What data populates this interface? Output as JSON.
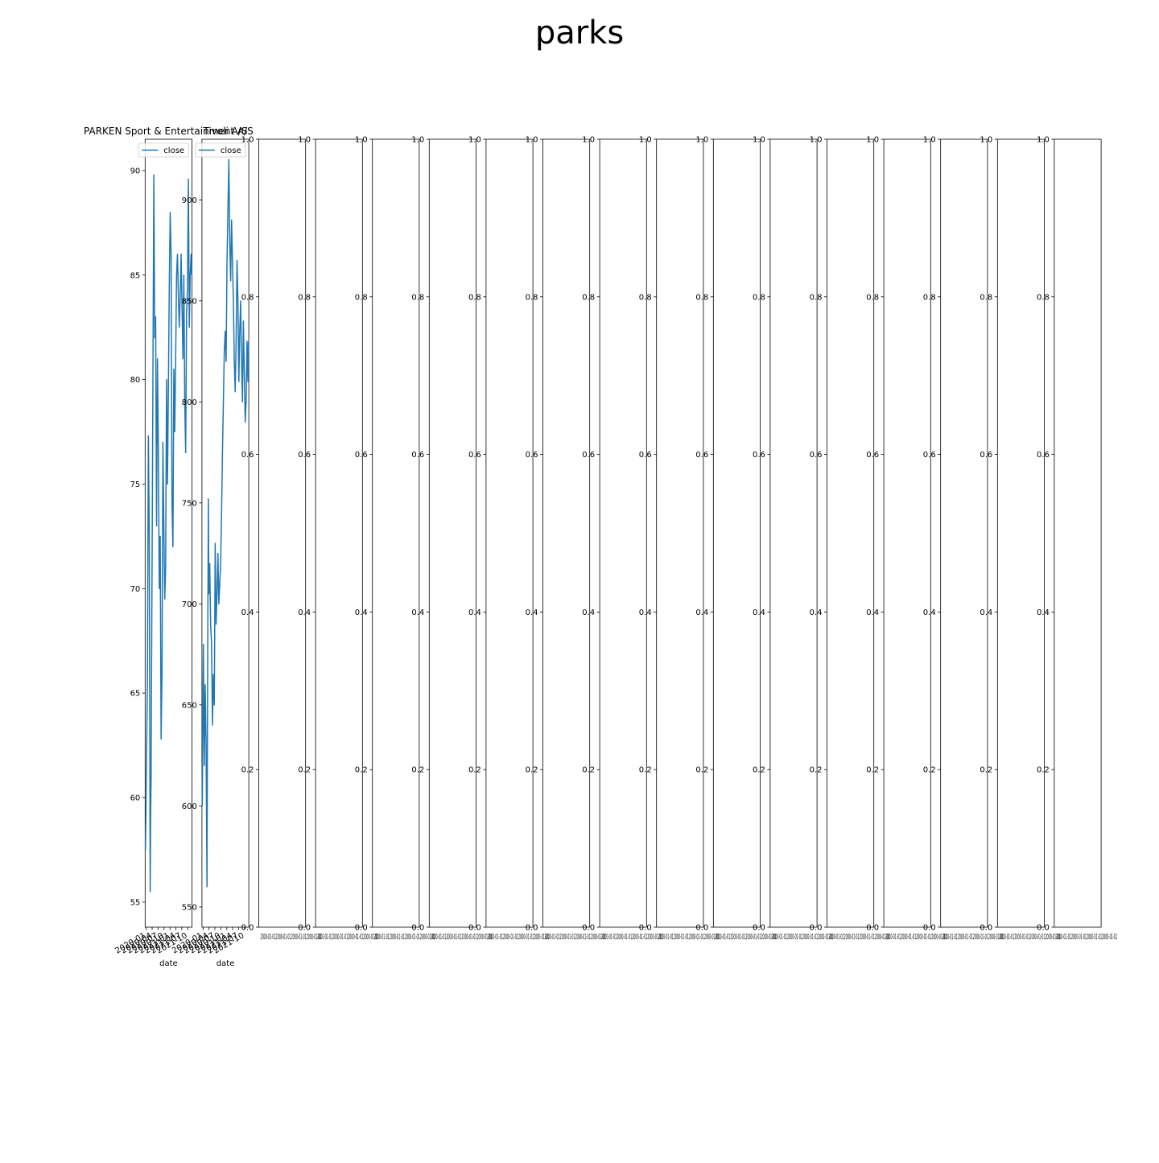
{
  "figure": {
    "suptitle": "parks"
  },
  "colors": {
    "line": "#1f77b4",
    "axes": "#000000",
    "background": "#ffffff",
    "legend_border": "#cccccc"
  },
  "chart_data": [
    {
      "type": "line",
      "title": "PARKEN Sport & Entertainment A/S",
      "xlabel": "date",
      "ylabel": "",
      "legend": {
        "entries": [
          "close"
        ],
        "placement": "upper-left"
      },
      "grid": false,
      "ylim": [
        53.8,
        91.5
      ],
      "xlim": [
        "2019-12-15",
        "2021-12-05"
      ],
      "yticks": [
        55,
        60,
        65,
        70,
        75,
        80,
        85,
        90
      ],
      "xticks": [
        "2020-01",
        "2020-04",
        "2020-07",
        "2020-10",
        "2021-01",
        "2021-04",
        "2021-07",
        "2021-10"
      ],
      "series": [
        {
          "name": "close",
          "x": [
            "2019-12-20",
            "2020-01-06",
            "2020-01-20",
            "2020-02-03",
            "2020-02-17",
            "2020-03-02",
            "2020-03-09",
            "2020-03-16",
            "2020-03-23",
            "2020-03-30",
            "2020-04-13",
            "2020-04-27",
            "2020-05-11",
            "2020-05-25",
            "2020-06-08",
            "2020-06-22",
            "2020-07-06",
            "2020-07-20",
            "2020-08-03",
            "2020-08-17",
            "2020-08-31",
            "2020-09-14",
            "2020-09-28",
            "2020-10-12",
            "2020-10-26",
            "2020-11-09",
            "2020-11-23",
            "2020-12-07",
            "2020-12-21",
            "2021-01-04",
            "2021-01-18",
            "2021-02-01",
            "2021-02-15",
            "2021-03-01",
            "2021-03-15",
            "2021-03-29",
            "2021-04-12",
            "2021-04-26",
            "2021-05-10",
            "2021-05-24",
            "2021-06-07",
            "2021-06-21",
            "2021-07-05",
            "2021-07-19",
            "2021-08-02",
            "2021-08-16",
            "2021-08-30",
            "2021-09-13",
            "2021-09-27",
            "2021-10-11",
            "2021-10-25",
            "2021-11-08",
            "2021-11-22",
            "2021-11-30"
          ],
          "values": [
            57.5,
            62,
            66,
            77.3,
            72.5,
            55.5,
            59,
            61,
            66,
            70.5,
            80,
            89.8,
            82,
            83,
            73,
            81,
            76.5,
            70,
            72.5,
            62.8,
            66,
            77,
            73,
            69.5,
            71,
            80,
            75,
            79.5,
            84.5,
            88,
            86,
            74,
            72,
            80.5,
            77.5,
            81,
            85,
            86,
            84,
            82.5,
            84,
            86,
            83.5,
            81,
            85,
            79,
            76.5,
            83,
            84.5,
            89.6,
            82.5,
            85,
            86,
            85
          ]
        }
      ]
    },
    {
      "type": "line",
      "title": "Tivoli A/S",
      "xlabel": "date",
      "ylabel": "",
      "legend": {
        "entries": [
          "close"
        ],
        "placement": "upper-left"
      },
      "grid": false,
      "ylim": [
        540,
        930
      ],
      "xlim": [
        "2019-12-15",
        "2021-12-05"
      ],
      "yticks": [
        550,
        600,
        650,
        700,
        750,
        800,
        850,
        900
      ],
      "xticks": [
        "2020-01",
        "2020-04",
        "2020-07",
        "2020-10",
        "2021-01",
        "2021-04",
        "2021-07",
        "2021-10"
      ],
      "series": [
        {
          "name": "close",
          "x": [
            "2019-12-20",
            "2020-01-06",
            "2020-01-20",
            "2020-02-03",
            "2020-02-17",
            "2020-03-02",
            "2020-03-09",
            "2020-03-16",
            "2020-03-23",
            "2020-03-30",
            "2020-04-13",
            "2020-04-27",
            "2020-05-11",
            "2020-05-25",
            "2020-06-08",
            "2020-06-22",
            "2020-07-06",
            "2020-07-20",
            "2020-08-03",
            "2020-08-17",
            "2020-08-31",
            "2020-09-14",
            "2020-09-28",
            "2020-10-12",
            "2020-10-26",
            "2020-11-09",
            "2020-11-23",
            "2020-12-07",
            "2020-12-21",
            "2021-01-04",
            "2021-01-18",
            "2021-02-01",
            "2021-02-15",
            "2021-03-01",
            "2021-03-15",
            "2021-03-29",
            "2021-04-12",
            "2021-04-26",
            "2021-05-10",
            "2021-05-24",
            "2021-06-07",
            "2021-06-21",
            "2021-07-05",
            "2021-07-19",
            "2021-08-02",
            "2021-08-16",
            "2021-08-30",
            "2021-09-13",
            "2021-09-27",
            "2021-10-11",
            "2021-10-25",
            "2021-11-08",
            "2021-11-22",
            "2021-11-30"
          ],
          "values": [
            600,
            680,
            620,
            660,
            630,
            560,
            640,
            700,
            752,
            705,
            720,
            690,
            680,
            640,
            665,
            650,
            730,
            690,
            705,
            725,
            700,
            710,
            720,
            745,
            775,
            800,
            825,
            835,
            820,
            870,
            895,
            920,
            880,
            860,
            890,
            870,
            850,
            820,
            805,
            830,
            870,
            850,
            810,
            835,
            850,
            820,
            800,
            840,
            815,
            790,
            800,
            830,
            810,
            830
          ]
        }
      ]
    },
    {
      "type": "line",
      "title": "",
      "xlabel": "",
      "ylabel": "",
      "ylim": [
        0,
        1
      ],
      "yticks": [
        "0.0",
        "0.2",
        "0.4",
        "0.6",
        "0.8",
        "1.0"
      ],
      "xticks_label": "2000-01-01",
      "series": []
    },
    {
      "type": "line",
      "title": "",
      "xlabel": "",
      "ylabel": "",
      "ylim": [
        0,
        1
      ],
      "yticks": [
        "0.0",
        "0.2",
        "0.4",
        "0.6",
        "0.8",
        "1.0"
      ],
      "xticks_label": "2000-01-01",
      "series": []
    },
    {
      "type": "line",
      "title": "",
      "xlabel": "",
      "ylabel": "",
      "ylim": [
        0,
        1
      ],
      "yticks": [
        "0.0",
        "0.2",
        "0.4",
        "0.6",
        "0.8",
        "1.0"
      ],
      "xticks_label": "2000-01-01",
      "series": []
    },
    {
      "type": "line",
      "title": "",
      "xlabel": "",
      "ylabel": "",
      "ylim": [
        0,
        1
      ],
      "yticks": [
        "0.0",
        "0.2",
        "0.4",
        "0.6",
        "0.8",
        "1.0"
      ],
      "xticks_label": "2000-01-01",
      "series": []
    },
    {
      "type": "line",
      "title": "",
      "xlabel": "",
      "ylabel": "",
      "ylim": [
        0,
        1
      ],
      "yticks": [
        "0.0",
        "0.2",
        "0.4",
        "0.6",
        "0.8",
        "1.0"
      ],
      "xticks_label": "2000-01-01",
      "series": []
    },
    {
      "type": "line",
      "title": "",
      "xlabel": "",
      "ylabel": "",
      "ylim": [
        0,
        1
      ],
      "yticks": [
        "0.0",
        "0.2",
        "0.4",
        "0.6",
        "0.8",
        "1.0"
      ],
      "xticks_label": "2000-01-01",
      "series": []
    },
    {
      "type": "line",
      "title": "",
      "xlabel": "",
      "ylabel": "",
      "ylim": [
        0,
        1
      ],
      "yticks": [
        "0.0",
        "0.2",
        "0.4",
        "0.6",
        "0.8",
        "1.0"
      ],
      "xticks_label": "2000-01-01",
      "series": []
    },
    {
      "type": "line",
      "title": "",
      "xlabel": "",
      "ylabel": "",
      "ylim": [
        0,
        1
      ],
      "yticks": [
        "0.0",
        "0.2",
        "0.4",
        "0.6",
        "0.8",
        "1.0"
      ],
      "xticks_label": "2000-01-01",
      "series": []
    },
    {
      "type": "line",
      "title": "",
      "xlabel": "",
      "ylabel": "",
      "ylim": [
        0,
        1
      ],
      "yticks": [
        "0.0",
        "0.2",
        "0.4",
        "0.6",
        "0.8",
        "1.0"
      ],
      "xticks_label": "2000-01-01",
      "series": []
    },
    {
      "type": "line",
      "title": "",
      "xlabel": "",
      "ylabel": "",
      "ylim": [
        0,
        1
      ],
      "yticks": [
        "0.0",
        "0.2",
        "0.4",
        "0.6",
        "0.8",
        "1.0"
      ],
      "xticks_label": "2000-01-01",
      "series": []
    },
    {
      "type": "line",
      "title": "",
      "xlabel": "",
      "ylabel": "",
      "ylim": [
        0,
        1
      ],
      "yticks": [
        "0.0",
        "0.2",
        "0.4",
        "0.6",
        "0.8",
        "1.0"
      ],
      "xticks_label": "2000-01-01",
      "series": []
    },
    {
      "type": "line",
      "title": "",
      "xlabel": "",
      "ylabel": "",
      "ylim": [
        0,
        1
      ],
      "yticks": [
        "0.0",
        "0.2",
        "0.4",
        "0.6",
        "0.8",
        "1.0"
      ],
      "xticks_label": "2000-01-01",
      "series": []
    },
    {
      "type": "line",
      "title": "",
      "xlabel": "",
      "ylabel": "",
      "ylim": [
        0,
        1
      ],
      "yticks": [
        "0.0",
        "0.2",
        "0.4",
        "0.6",
        "0.8",
        "1.0"
      ],
      "xticks_label": "2000-01-01",
      "series": []
    },
    {
      "type": "line",
      "title": "",
      "xlabel": "",
      "ylabel": "",
      "ylim": [
        0,
        1
      ],
      "yticks": [
        "0.0",
        "0.2",
        "0.4",
        "0.6",
        "0.8",
        "1.0"
      ],
      "xticks_label": "2000-01-01",
      "series": []
    },
    {
      "type": "line",
      "title": "",
      "xlabel": "",
      "ylabel": "",
      "ylim": [
        0,
        1
      ],
      "yticks": [
        "0.0",
        "0.2",
        "0.4",
        "0.6",
        "0.8",
        "1.0"
      ],
      "xticks_label": "2000-01-01",
      "series": []
    }
  ]
}
